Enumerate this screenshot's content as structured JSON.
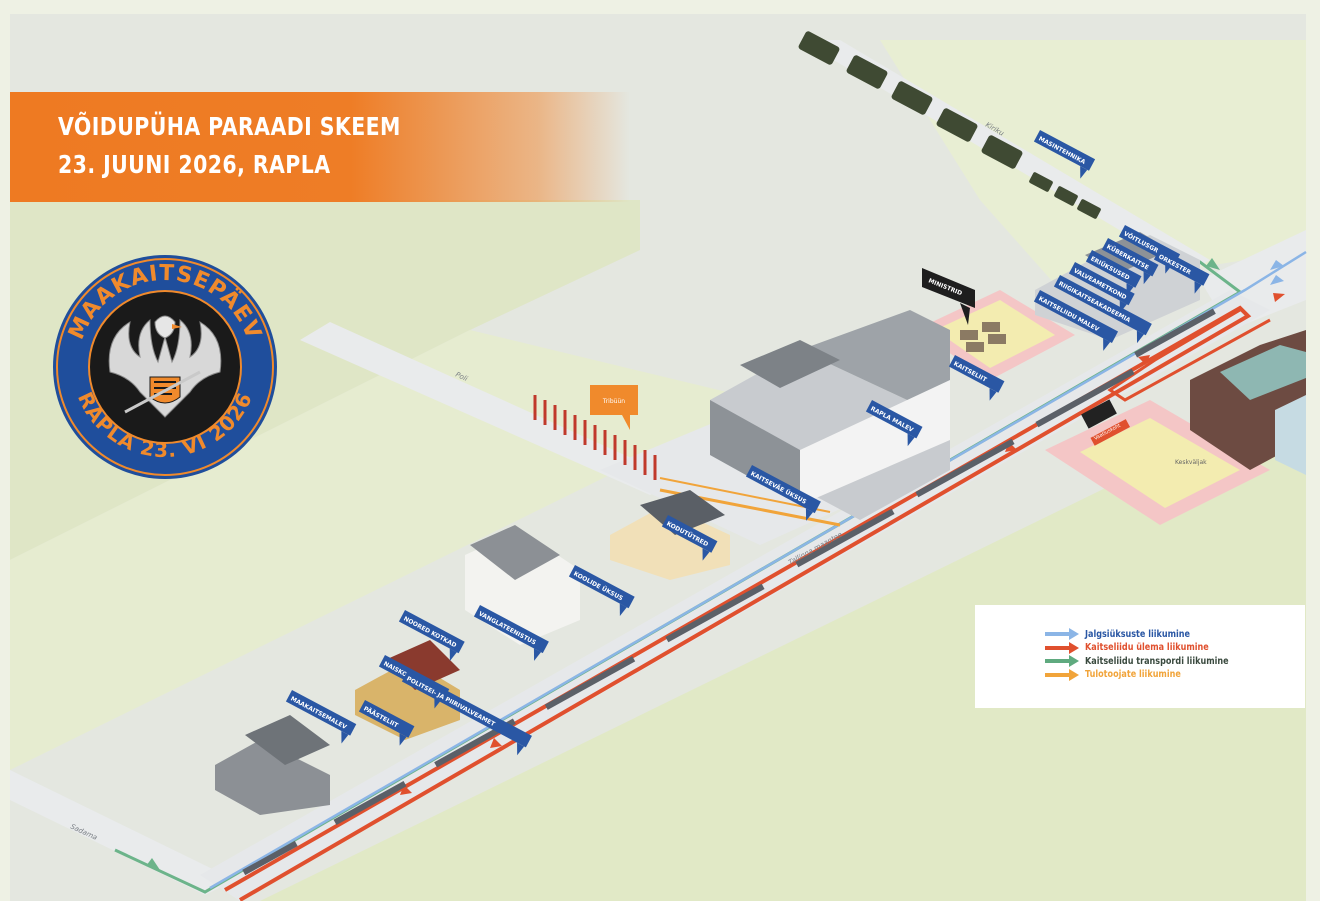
{
  "title": {
    "line1": "VÕIDUPÜHA PARAADI SKEEM",
    "line2": "23. JUUNI 2026, RAPLA"
  },
  "emblem": {
    "top_text": "MAAKAITSEPÄEV",
    "bottom_text": "RAPLA 23. VI 2026",
    "ring_color": "#1f4e9c",
    "text_color": "#f08a2c"
  },
  "streets": {
    "sadama": "Sadama",
    "poli": "Poli",
    "kiriku": "Kiriku",
    "tallinna": "Tallinna maantee"
  },
  "places": {
    "tribune": "Tribüün",
    "start": "Vaatluskoht",
    "ministers": "MINISTRID",
    "square": "Keskväljak"
  },
  "unit_labels": [
    "MAAKAITSEMALEV",
    "PÄÄSTELIIT",
    "NAISKODUKAITSE",
    "NOORED KOTKAD",
    "POLITSEI- JA PIIRIVALVEAMET",
    "VANGLATEENISTUS",
    "KOOLIDE ÜKSUS",
    "KODUTÜTRED",
    "KAITSEVÄE ÜKSUS",
    "RAPLA MALEV",
    "KAITSELIIT",
    "KAITSELIIDU MALEV",
    "RIIGIKAITSEAKADEEMIA",
    "VALVEAMETKOND",
    "ERIÜKSUSED",
    "KÜBERKAITSE",
    "VÕITLUSGRUPP",
    "ORKESTER",
    "MASINTEHNIKA"
  ],
  "legend": {
    "items": [
      {
        "label": "Jalgsiüksuste ",
        "label_bold": "liikumine",
        "color": "#8bb5e6"
      },
      {
        "label": "Kaitseliidu ülema liikumine",
        "label_bold": "",
        "color": "#e0502e"
      },
      {
        "label": "Kaitseliidu transpordi liikumine",
        "label_bold": "",
        "color": "#5faa7f"
      },
      {
        "label": "Tulotoojate ",
        "label_bold": "liikumine",
        "color": "#f1a43a"
      }
    ]
  },
  "colors": {
    "orange": "#ee7a22",
    "route_red": "#e0502e",
    "route_green": "#6cb48a",
    "route_blue": "#8bb5e6",
    "route_yellow": "#f1a43a",
    "label_blue": "#2a57a4"
  }
}
